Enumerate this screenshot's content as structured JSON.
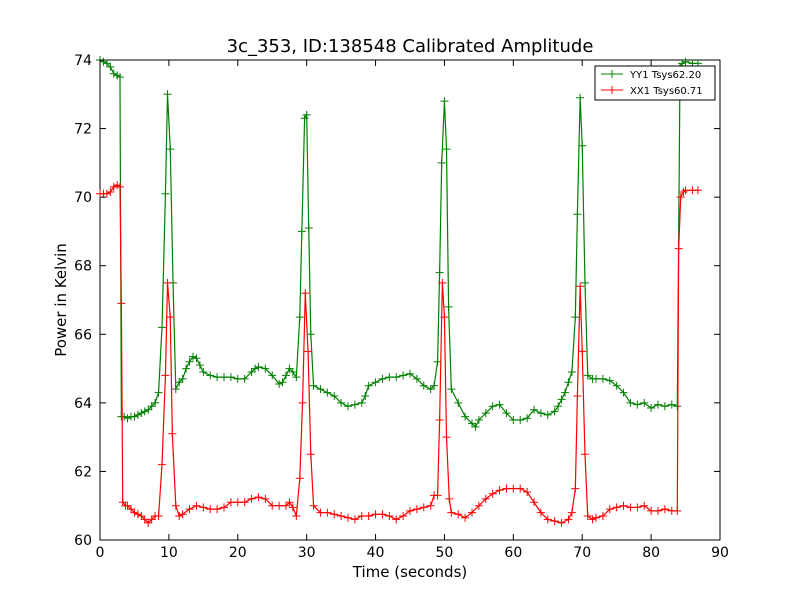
{
  "chart_data": {
    "type": "line",
    "title": "3c_353, ID:138548 Calibrated Amplitude",
    "xlabel": "Time (seconds)",
    "ylabel": "Power in Kelvin",
    "xlim": [
      0,
      90
    ],
    "ylim": [
      60,
      74
    ],
    "xticks": [
      0,
      10,
      20,
      30,
      40,
      50,
      60,
      70,
      80,
      90
    ],
    "yticks": [
      60,
      62,
      64,
      66,
      68,
      70,
      72,
      74
    ],
    "grid": false,
    "legend": {
      "position": "top-right"
    },
    "series": [
      {
        "name": "YY1 Tsys62.20",
        "color": "#008000",
        "marker": "plus",
        "points": [
          [
            0.0,
            74.0
          ],
          [
            0.5,
            73.95
          ],
          [
            1.0,
            73.9
          ],
          [
            1.5,
            73.8
          ],
          [
            2.0,
            73.6
          ],
          [
            2.5,
            73.55
          ],
          [
            2.9,
            73.5
          ],
          [
            3.1,
            63.6
          ],
          [
            3.5,
            63.6
          ],
          [
            4.0,
            63.55
          ],
          [
            4.5,
            63.6
          ],
          [
            5.0,
            63.6
          ],
          [
            5.5,
            63.65
          ],
          [
            6.0,
            63.7
          ],
          [
            6.5,
            63.75
          ],
          [
            7.0,
            63.8
          ],
          [
            7.5,
            63.9
          ],
          [
            8.0,
            64.0
          ],
          [
            8.5,
            64.3
          ],
          [
            9.0,
            66.2
          ],
          [
            9.5,
            70.1
          ],
          [
            9.8,
            73.0
          ],
          [
            10.2,
            71.4
          ],
          [
            10.6,
            67.5
          ],
          [
            11.0,
            64.4
          ],
          [
            11.5,
            64.6
          ],
          [
            12.0,
            64.7
          ],
          [
            12.5,
            65.0
          ],
          [
            13.0,
            65.2
          ],
          [
            13.5,
            65.35
          ],
          [
            14.0,
            65.3
          ],
          [
            14.5,
            65.1
          ],
          [
            15.0,
            64.9
          ],
          [
            16.0,
            64.8
          ],
          [
            17.0,
            64.75
          ],
          [
            18.0,
            64.75
          ],
          [
            19.0,
            64.75
          ],
          [
            20.0,
            64.7
          ],
          [
            21.0,
            64.7
          ],
          [
            22.0,
            64.9
          ],
          [
            22.5,
            65.0
          ],
          [
            23.0,
            65.05
          ],
          [
            24.0,
            65.0
          ],
          [
            25.0,
            64.8
          ],
          [
            26.0,
            64.55
          ],
          [
            26.5,
            64.6
          ],
          [
            27.0,
            64.8
          ],
          [
            27.5,
            65.0
          ],
          [
            28.0,
            64.9
          ],
          [
            28.5,
            64.75
          ],
          [
            29.0,
            66.5
          ],
          [
            29.3,
            69.0
          ],
          [
            29.7,
            72.3
          ],
          [
            30.0,
            72.4
          ],
          [
            30.3,
            69.1
          ],
          [
            30.6,
            66.0
          ],
          [
            31.0,
            64.5
          ],
          [
            32.0,
            64.4
          ],
          [
            33.0,
            64.3
          ],
          [
            34.0,
            64.2
          ],
          [
            35.0,
            64.0
          ],
          [
            36.0,
            63.9
          ],
          [
            37.0,
            63.95
          ],
          [
            38.0,
            64.0
          ],
          [
            38.5,
            64.2
          ],
          [
            39.0,
            64.5
          ],
          [
            40.0,
            64.6
          ],
          [
            41.0,
            64.7
          ],
          [
            42.0,
            64.75
          ],
          [
            43.0,
            64.75
          ],
          [
            44.0,
            64.8
          ],
          [
            45.0,
            64.85
          ],
          [
            46.0,
            64.7
          ],
          [
            47.0,
            64.5
          ],
          [
            48.0,
            64.4
          ],
          [
            48.5,
            64.5
          ],
          [
            49.0,
            65.2
          ],
          [
            49.3,
            67.8
          ],
          [
            49.6,
            71.0
          ],
          [
            50.0,
            72.8
          ],
          [
            50.3,
            71.4
          ],
          [
            50.6,
            66.8
          ],
          [
            51.0,
            64.4
          ],
          [
            52.0,
            64.0
          ],
          [
            53.0,
            63.6
          ],
          [
            54.0,
            63.4
          ],
          [
            54.5,
            63.3
          ],
          [
            55.0,
            63.5
          ],
          [
            56.0,
            63.7
          ],
          [
            57.0,
            63.9
          ],
          [
            58.0,
            63.95
          ],
          [
            59.0,
            63.7
          ],
          [
            60.0,
            63.5
          ],
          [
            61.0,
            63.5
          ],
          [
            62.0,
            63.55
          ],
          [
            63.0,
            63.8
          ],
          [
            64.0,
            63.7
          ],
          [
            65.0,
            63.65
          ],
          [
            66.0,
            63.75
          ],
          [
            66.5,
            63.9
          ],
          [
            67.0,
            64.1
          ],
          [
            67.5,
            64.3
          ],
          [
            68.0,
            64.6
          ],
          [
            68.5,
            64.9
          ],
          [
            69.0,
            66.5
          ],
          [
            69.3,
            69.5
          ],
          [
            69.7,
            72.9
          ],
          [
            70.0,
            71.5
          ],
          [
            70.4,
            67.5
          ],
          [
            70.8,
            64.8
          ],
          [
            71.5,
            64.7
          ],
          [
            72.0,
            64.7
          ],
          [
            73.0,
            64.7
          ],
          [
            74.0,
            64.65
          ],
          [
            75.0,
            64.5
          ],
          [
            76.0,
            64.3
          ],
          [
            77.0,
            64.0
          ],
          [
            78.0,
            63.95
          ],
          [
            79.0,
            64.0
          ],
          [
            80.0,
            63.85
          ],
          [
            81.0,
            63.95
          ],
          [
            82.0,
            63.9
          ],
          [
            83.0,
            63.95
          ],
          [
            83.8,
            63.9
          ],
          [
            84.2,
            73.8
          ],
          [
            84.5,
            73.9
          ],
          [
            85.0,
            73.95
          ],
          [
            86.0,
            73.9
          ],
          [
            86.8,
            73.9
          ]
        ]
      },
      {
        "name": "XX1 Tsys60.71",
        "color": "#ff0000",
        "marker": "plus",
        "points": [
          [
            0.0,
            70.1
          ],
          [
            0.5,
            70.1
          ],
          [
            1.0,
            70.1
          ],
          [
            1.5,
            70.15
          ],
          [
            2.0,
            70.3
          ],
          [
            2.5,
            70.35
          ],
          [
            2.9,
            70.3
          ],
          [
            3.1,
            66.9
          ],
          [
            3.3,
            61.1
          ],
          [
            3.7,
            61.0
          ],
          [
            4.0,
            61.0
          ],
          [
            4.5,
            60.9
          ],
          [
            5.0,
            60.8
          ],
          [
            5.5,
            60.75
          ],
          [
            6.0,
            60.7
          ],
          [
            6.5,
            60.6
          ],
          [
            7.0,
            60.5
          ],
          [
            7.5,
            60.6
          ],
          [
            8.0,
            60.7
          ],
          [
            8.5,
            60.7
          ],
          [
            9.0,
            62.2
          ],
          [
            9.5,
            64.8
          ],
          [
            9.8,
            67.5
          ],
          [
            10.2,
            66.5
          ],
          [
            10.5,
            63.1
          ],
          [
            11.0,
            61.0
          ],
          [
            11.5,
            60.7
          ],
          [
            12.0,
            60.75
          ],
          [
            13.0,
            60.9
          ],
          [
            14.0,
            61.0
          ],
          [
            15.0,
            60.95
          ],
          [
            16.0,
            60.9
          ],
          [
            17.0,
            60.9
          ],
          [
            18.0,
            60.95
          ],
          [
            19.0,
            61.1
          ],
          [
            20.0,
            61.1
          ],
          [
            21.0,
            61.1
          ],
          [
            22.0,
            61.2
          ],
          [
            23.0,
            61.25
          ],
          [
            24.0,
            61.2
          ],
          [
            25.0,
            61.0
          ],
          [
            26.0,
            61.0
          ],
          [
            27.0,
            61.0
          ],
          [
            27.5,
            61.1
          ],
          [
            28.0,
            60.95
          ],
          [
            28.5,
            60.7
          ],
          [
            29.0,
            61.8
          ],
          [
            29.4,
            64.0
          ],
          [
            29.8,
            67.2
          ],
          [
            30.2,
            65.5
          ],
          [
            30.6,
            62.5
          ],
          [
            31.0,
            61.0
          ],
          [
            32.0,
            60.8
          ],
          [
            33.0,
            60.8
          ],
          [
            34.0,
            60.75
          ],
          [
            35.0,
            60.7
          ],
          [
            36.0,
            60.65
          ],
          [
            37.0,
            60.6
          ],
          [
            38.0,
            60.7
          ],
          [
            39.0,
            60.7
          ],
          [
            40.0,
            60.75
          ],
          [
            41.0,
            60.75
          ],
          [
            42.0,
            60.7
          ],
          [
            43.0,
            60.6
          ],
          [
            44.0,
            60.7
          ],
          [
            45.0,
            60.85
          ],
          [
            46.0,
            60.9
          ],
          [
            47.0,
            60.95
          ],
          [
            48.0,
            61.0
          ],
          [
            48.5,
            61.3
          ],
          [
            49.0,
            61.3
          ],
          [
            49.3,
            63.5
          ],
          [
            49.7,
            67.5
          ],
          [
            50.0,
            66.5
          ],
          [
            50.3,
            63.0
          ],
          [
            50.7,
            61.2
          ],
          [
            51.0,
            60.8
          ],
          [
            52.0,
            60.75
          ],
          [
            53.0,
            60.65
          ],
          [
            54.0,
            60.8
          ],
          [
            55.0,
            61.0
          ],
          [
            56.0,
            61.2
          ],
          [
            57.0,
            61.35
          ],
          [
            58.0,
            61.45
          ],
          [
            59.0,
            61.5
          ],
          [
            60.0,
            61.5
          ],
          [
            61.0,
            61.5
          ],
          [
            62.0,
            61.4
          ],
          [
            63.0,
            61.1
          ],
          [
            64.0,
            60.8
          ],
          [
            65.0,
            60.6
          ],
          [
            66.0,
            60.55
          ],
          [
            67.0,
            60.5
          ],
          [
            68.0,
            60.6
          ],
          [
            68.5,
            60.8
          ],
          [
            69.0,
            61.5
          ],
          [
            69.3,
            64.2
          ],
          [
            69.7,
            67.4
          ],
          [
            70.0,
            65.5
          ],
          [
            70.4,
            62.5
          ],
          [
            70.8,
            60.7
          ],
          [
            71.5,
            60.6
          ],
          [
            72.0,
            60.65
          ],
          [
            73.0,
            60.7
          ],
          [
            74.0,
            60.9
          ],
          [
            75.0,
            60.95
          ],
          [
            76.0,
            61.0
          ],
          [
            77.0,
            60.95
          ],
          [
            78.0,
            60.95
          ],
          [
            79.0,
            61.0
          ],
          [
            80.0,
            60.85
          ],
          [
            81.0,
            60.85
          ],
          [
            82.0,
            60.9
          ],
          [
            83.0,
            60.85
          ],
          [
            83.8,
            60.85
          ],
          [
            84.0,
            68.5
          ],
          [
            84.3,
            70.0
          ],
          [
            84.7,
            70.15
          ],
          [
            85.0,
            70.2
          ],
          [
            86.0,
            70.2
          ],
          [
            86.8,
            70.2
          ]
        ]
      }
    ]
  }
}
